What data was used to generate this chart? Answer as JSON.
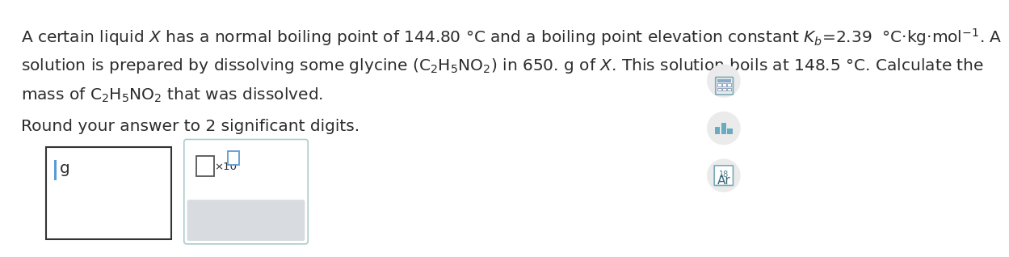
{
  "bg_color": "#ffffff",
  "text_color": "#2c2c2c",
  "line1": "A certain liquid $\\mathit{X}$ has a normal boiling point of 144.80 °C and a boiling point elevation constant $K_b$=2.39  °C·kg·mol$^{-1}$. A",
  "line2": "solution is prepared by dissolving some glycine (C$_2$H$_5$NO$_2$) in 650. g of $\\mathit{X}$. This solution boils at 148.5 °C. Calculate the",
  "line3": "mass of C$_2$H$_5$NO$_2$ that was dissolved.",
  "line4": "Round your answer to 2 significant digits.",
  "font_size_main": 14.5,
  "text_color_dark": "#1a1a1a",
  "icon_color": "#5b9bd5",
  "icon_bg": "#ebebeb",
  "button_bg": "#d8dce0",
  "input_border": "#333333",
  "popup_border": "#aacccc"
}
